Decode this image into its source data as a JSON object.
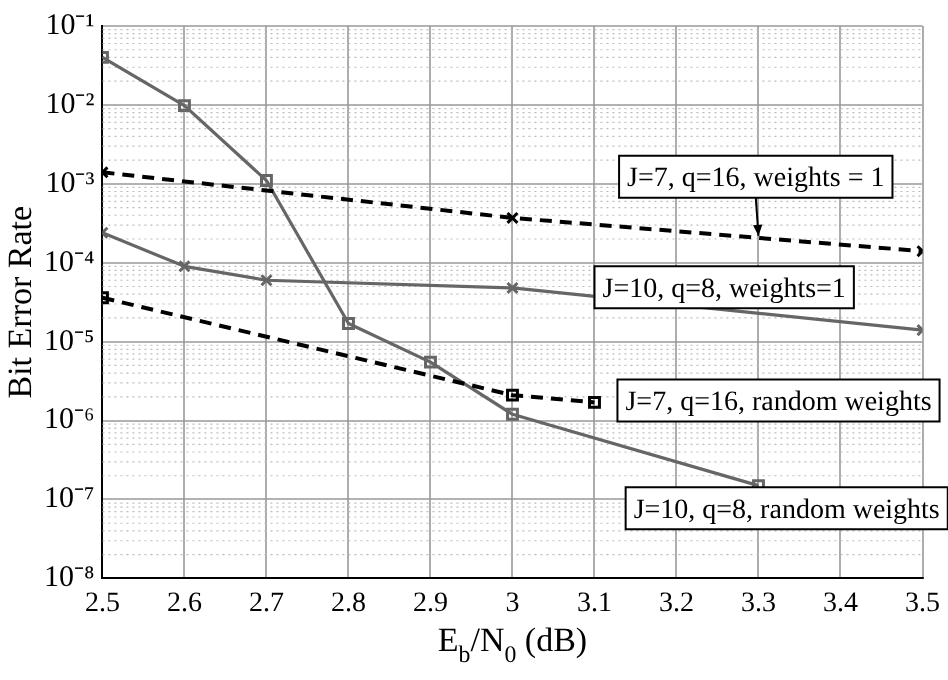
{
  "chart_data": {
    "type": "line",
    "xlabel": "E$_{b}$/N$_{0}$ (dB)",
    "ylabel": "Bit Error Rate",
    "xlim": [
      2.5,
      3.5
    ],
    "xticks": [
      2.5,
      2.6,
      2.7,
      2.8,
      2.9,
      3,
      3.1,
      3.2,
      3.3,
      3.4,
      3.5
    ],
    "ylim": [
      1e-08,
      0.1
    ],
    "log": "y",
    "grid": true,
    "legend": false,
    "yticks": [
      {
        "value": 1e-08,
        "label": "10⁻⁸"
      },
      {
        "value": 1e-07,
        "label": "10⁻⁷"
      },
      {
        "value": 1e-06,
        "label": "10⁻⁶"
      },
      {
        "value": 1e-05,
        "label": "10⁻⁵"
      },
      {
        "value": 0.0001,
        "label": "10⁻⁴"
      },
      {
        "value": 0.001,
        "label": "10⁻³"
      },
      {
        "value": 0.01,
        "label": "10⁻²"
      },
      {
        "value": 0.1,
        "label": "10⁻¹"
      }
    ],
    "series": [
      {
        "name": "J=7, q=16, weights = 1",
        "color": "#000000",
        "line_style": "dashed",
        "marker": "cross",
        "x": [
          2.5,
          3.0,
          3.5
        ],
        "values": [
          0.0014,
          0.00037,
          0.00014
        ]
      },
      {
        "name": "J=10, q=8, weights=1",
        "color": "#666666",
        "line_style": "solid",
        "marker": "cross",
        "x": [
          2.5,
          2.6,
          2.7,
          3.0,
          3.5
        ],
        "values": [
          0.00024,
          9e-05,
          6e-05,
          4.8e-05,
          1.4e-05
        ]
      },
      {
        "name": "J=7, q=16, random weights",
        "color": "#000000",
        "line_style": "dashed",
        "marker": "square",
        "x": [
          2.5,
          3.0,
          3.1
        ],
        "values": [
          3.6e-05,
          2.1e-06,
          1.7e-06
        ]
      },
      {
        "name": "J=10, q=8, random weights",
        "color": "#666666",
        "line_style": "solid",
        "marker": "square",
        "x": [
          2.5,
          2.6,
          2.7,
          2.8,
          2.9,
          3.0,
          3.3
        ],
        "values": [
          0.04,
          0.0098,
          0.0011,
          1.7e-05,
          5.5e-06,
          1.2e-06,
          1.5e-07
        ]
      }
    ]
  }
}
